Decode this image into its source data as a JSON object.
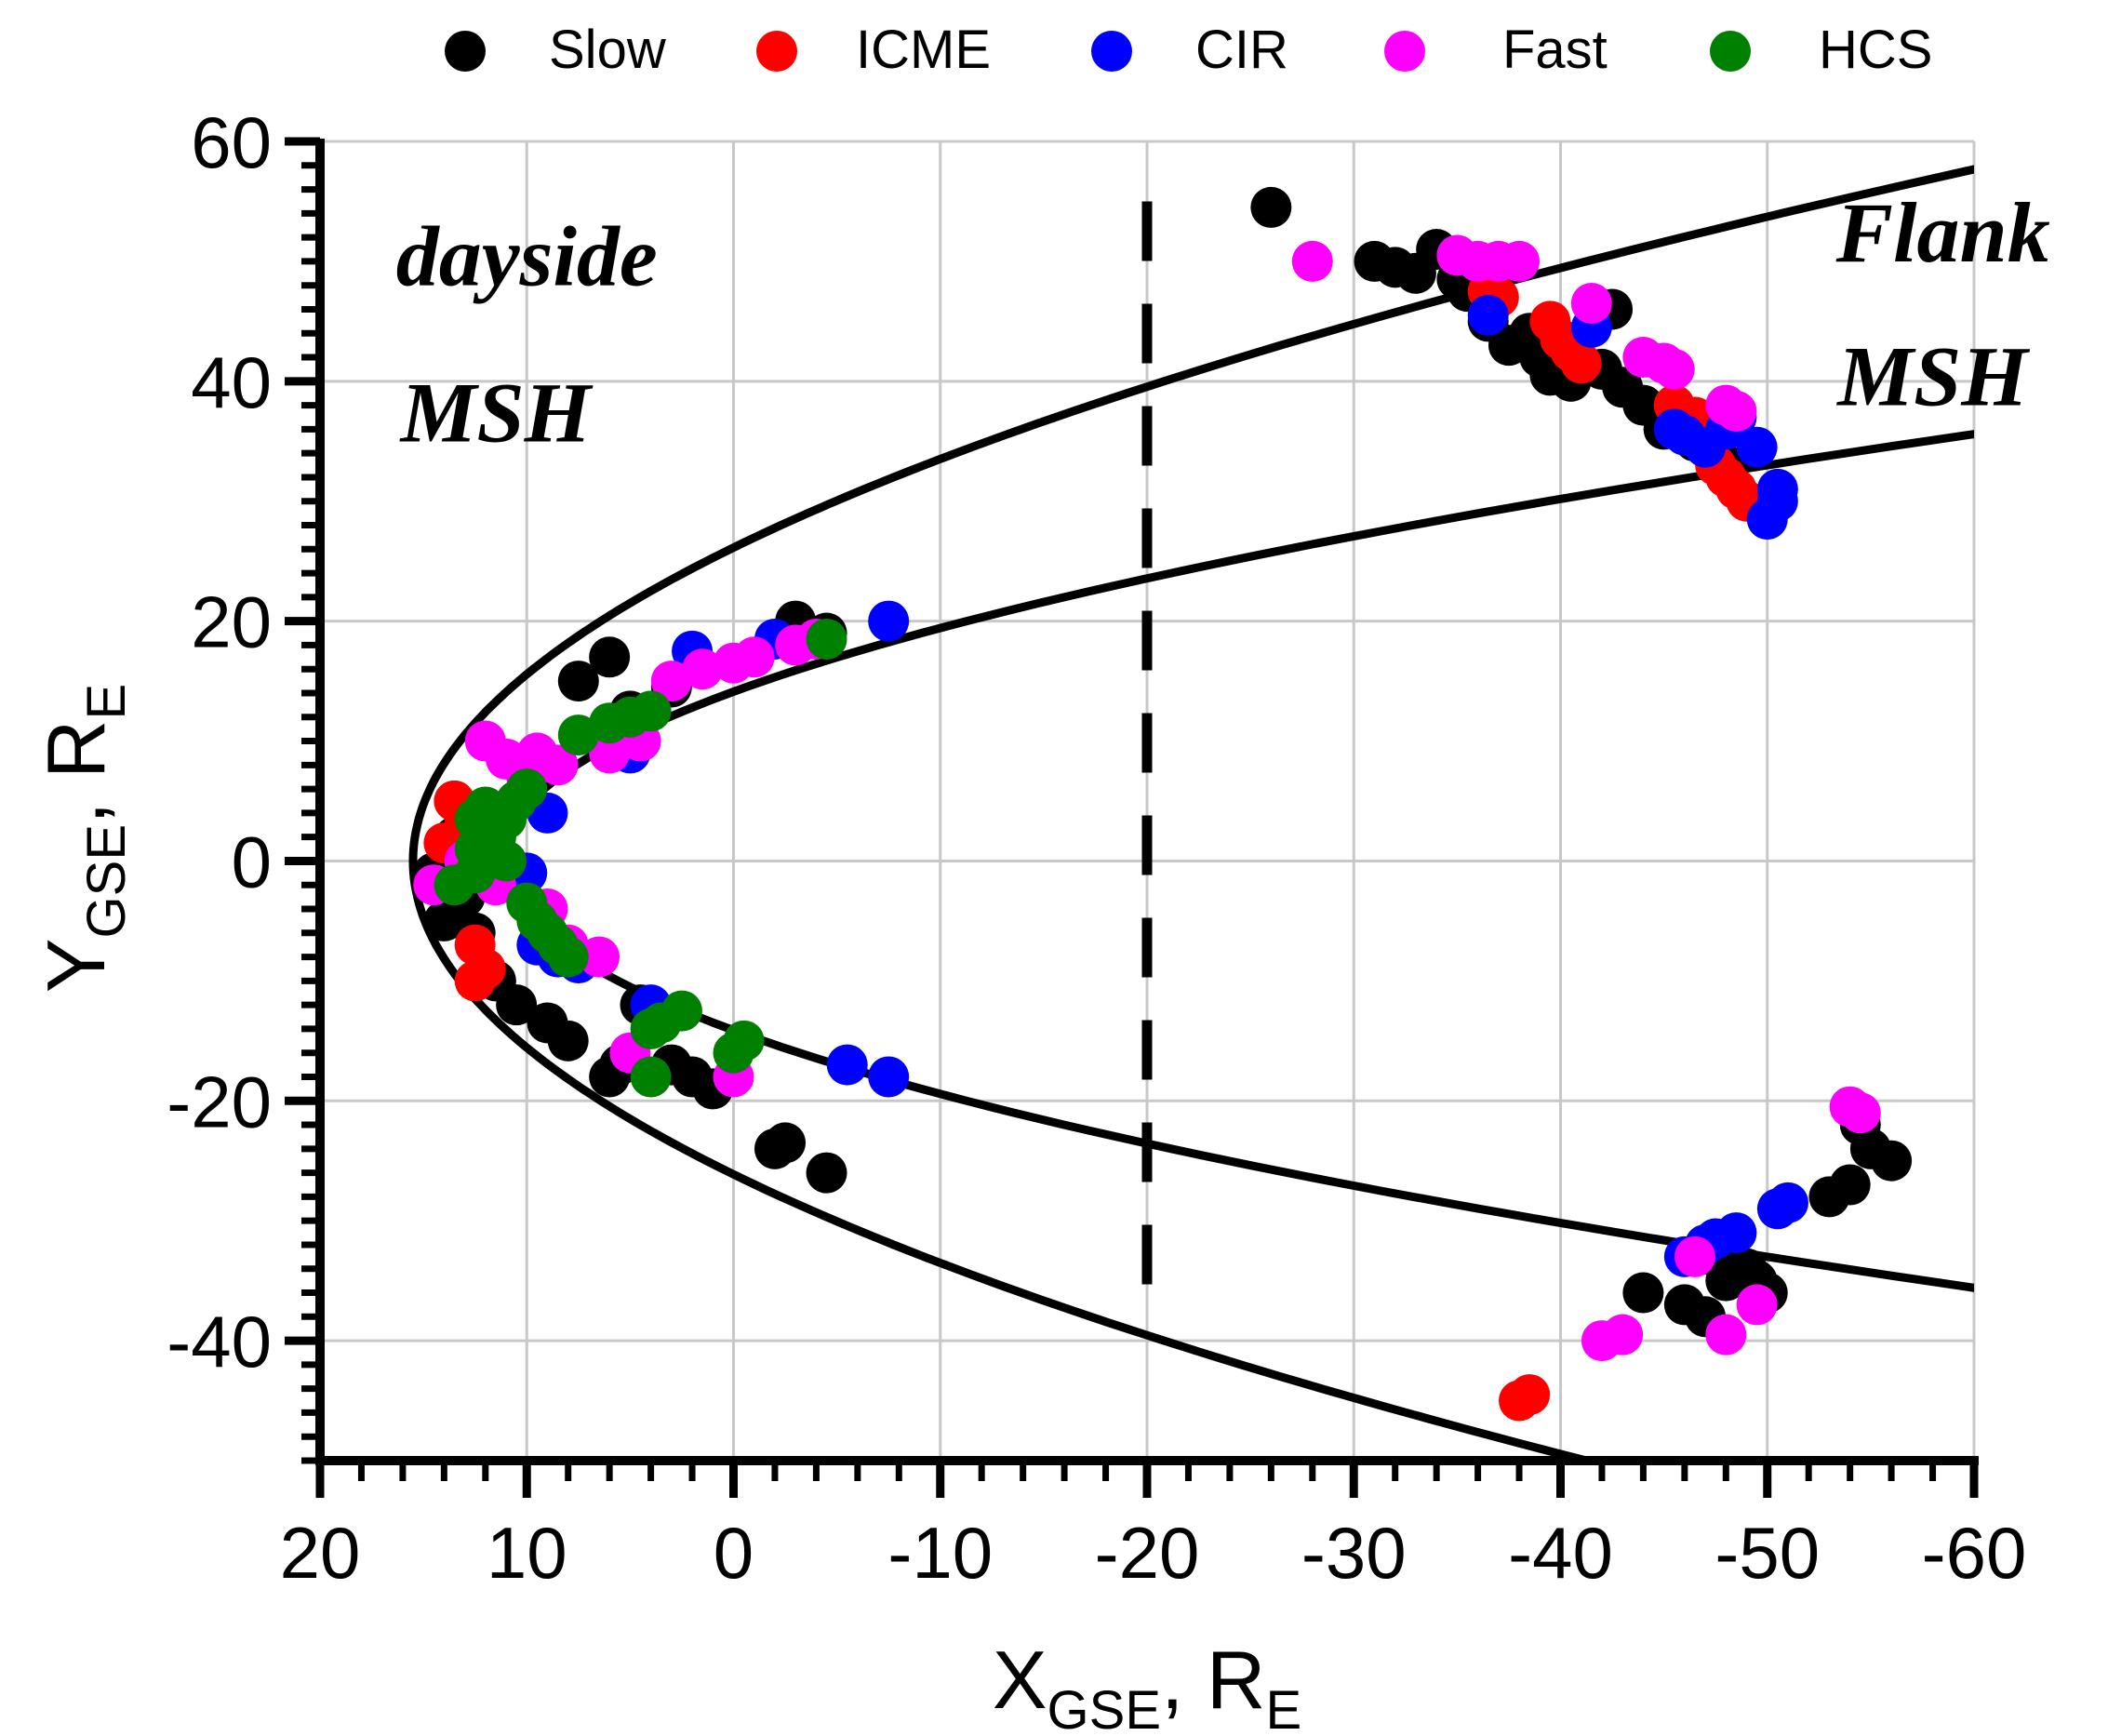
{
  "chart_data": {
    "type": "scatter",
    "title": "",
    "xlabel": {
      "main": "X",
      "sub": "GSE",
      "sep": ", ",
      "unit": "R",
      "unit_sub": "E"
    },
    "ylabel": {
      "main": "Y",
      "sub": "GSE",
      "sep": ", ",
      "unit": "R",
      "unit_sub": "E"
    },
    "xlim": [
      20,
      -60
    ],
    "ylim": [
      -50,
      60
    ],
    "x_ticks": [
      20,
      10,
      0,
      -10,
      -20,
      -30,
      -40,
      -50,
      -60
    ],
    "x_tick_labels": [
      "20",
      "10",
      "0",
      "-10",
      "-20",
      "-30",
      "-40",
      "-50",
      "-60"
    ],
    "y_ticks": [
      -40,
      -20,
      0,
      20,
      40,
      60
    ],
    "y_tick_labels": [
      "-40",
      "-20",
      "0",
      "20",
      "40",
      "60"
    ],
    "grid": true,
    "legend_position": "top",
    "annotations": [
      {
        "text": "dayside",
        "x": 10,
        "y": 48,
        "anchor": "middle"
      },
      {
        "text": "MSH",
        "x": 11.5,
        "y": 35,
        "anchor": "middle"
      },
      {
        "text": "Flank",
        "x": -58.5,
        "y": 50,
        "anchor": "middle"
      },
      {
        "text": "MSH",
        "x": -58,
        "y": 38,
        "anchor": "middle"
      }
    ],
    "reference_lines": [
      {
        "name": "divider",
        "x": -20,
        "y_range": [
          -37,
          55
        ],
        "style": "dashed"
      }
    ],
    "boundaries": [
      {
        "name": "bow-shock",
        "x0": 15.5,
        "a": 0.0227
      },
      {
        "name": "magnetopause",
        "x0": 11.2,
        "a": 0.0562
      }
    ],
    "series": [
      {
        "name": "Slow",
        "color": "#000000",
        "points": [
          [
            -26,
            54.5
          ],
          [
            -31,
            50
          ],
          [
            -32,
            49.5
          ],
          [
            -33,
            49
          ],
          [
            -34,
            51
          ],
          [
            -35,
            48.5
          ],
          [
            -35.5,
            47.5
          ],
          [
            -36.5,
            45
          ],
          [
            -37.5,
            43
          ],
          [
            -38.5,
            44
          ],
          [
            -39,
            42
          ],
          [
            -39.5,
            40.5
          ],
          [
            -40.5,
            40
          ],
          [
            -41,
            41.5
          ],
          [
            -42,
            41
          ],
          [
            -42.5,
            46
          ],
          [
            -43,
            39.5
          ],
          [
            -44,
            38
          ],
          [
            -45,
            36
          ],
          [
            -46.5,
            35
          ],
          [
            -48,
            33
          ],
          [
            14.5,
            -1
          ],
          [
            14,
            -5
          ],
          [
            13.5,
            2
          ],
          [
            13.5,
            5
          ],
          [
            13,
            -3
          ],
          [
            12.5,
            -6
          ],
          [
            11.5,
            -10
          ],
          [
            10.5,
            -12
          ],
          [
            9,
            -13.5
          ],
          [
            8,
            -15
          ],
          [
            6,
            -18
          ],
          [
            5.5,
            -17
          ],
          [
            4.5,
            -12
          ],
          [
            3,
            -17
          ],
          [
            2,
            -18
          ],
          [
            1,
            -19
          ],
          [
            -2,
            -24
          ],
          [
            -2.5,
            -23.5
          ],
          [
            -4.5,
            -26
          ],
          [
            7.5,
            15
          ],
          [
            6,
            17
          ],
          [
            5,
            12.5
          ],
          [
            3,
            14.5
          ],
          [
            -3,
            20
          ],
          [
            -4.5,
            19
          ],
          [
            -53,
            -28
          ],
          [
            -54,
            -27
          ],
          [
            -55,
            -24
          ],
          [
            -56,
            -25
          ],
          [
            -54.5,
            -22
          ],
          [
            -47.5,
            -33
          ],
          [
            -48,
            -35
          ],
          [
            -49,
            -34
          ],
          [
            -49.5,
            -35
          ],
          [
            -47,
            -38
          ],
          [
            -46,
            -37
          ],
          [
            -44,
            -36
          ],
          [
            -50,
            -36
          ]
        ]
      },
      {
        "name": "ICME",
        "color": "#ff0000",
        "points": [
          [
            -36.5,
            47.5
          ],
          [
            -37,
            47
          ],
          [
            -39.5,
            45
          ],
          [
            -40,
            43.5
          ],
          [
            -40.5,
            42.5
          ],
          [
            -41,
            41.5
          ],
          [
            -45.5,
            38
          ],
          [
            -46.5,
            37
          ],
          [
            -47.5,
            33
          ],
          [
            -48,
            32
          ],
          [
            -48.5,
            31
          ],
          [
            -49,
            30
          ],
          [
            13.5,
            5
          ],
          [
            14,
            1.5
          ],
          [
            13,
            3
          ],
          [
            12.5,
            -7
          ],
          [
            12,
            -9
          ],
          [
            12.5,
            -10
          ],
          [
            -38,
            -45
          ],
          [
            -38.5,
            -44.5
          ]
        ]
      },
      {
        "name": "CIR",
        "color": "#0000ff",
        "points": [
          [
            -36.5,
            45.5
          ],
          [
            -41.5,
            44.5
          ],
          [
            -45.5,
            36
          ],
          [
            -46,
            35.5
          ],
          [
            -47,
            34.5
          ],
          [
            -48,
            36
          ],
          [
            -48.5,
            37
          ],
          [
            -49.5,
            34.5
          ],
          [
            -50,
            28.5
          ],
          [
            -50.5,
            31
          ],
          [
            -50.5,
            30
          ],
          [
            2,
            17.5
          ],
          [
            -2,
            18.5
          ],
          [
            -7.5,
            20
          ],
          [
            5,
            9
          ],
          [
            4.5,
            10
          ],
          [
            9,
            4
          ],
          [
            10,
            -1
          ],
          [
            9.5,
            -7
          ],
          [
            8.5,
            -8
          ],
          [
            7.5,
            -8.5
          ],
          [
            4,
            -12
          ],
          [
            -5.5,
            -17
          ],
          [
            -7.5,
            -18
          ],
          [
            -46,
            -33
          ],
          [
            -47,
            -32
          ],
          [
            -47.5,
            -31.5
          ],
          [
            -48.5,
            -31
          ],
          [
            -51,
            -28.5
          ],
          [
            -50.5,
            -29
          ]
        ]
      },
      {
        "name": "Fast",
        "color": "#ff00ff",
        "points": [
          [
            -28,
            50
          ],
          [
            -35,
            50.5
          ],
          [
            -36,
            50
          ],
          [
            -37,
            50
          ],
          [
            -38,
            50
          ],
          [
            -41.5,
            46.5
          ],
          [
            -44,
            42
          ],
          [
            -45,
            41.5
          ],
          [
            -45.5,
            41
          ],
          [
            -48,
            38
          ],
          [
            -48.5,
            37.5
          ],
          [
            12,
            10
          ],
          [
            11,
            8.5
          ],
          [
            10,
            7
          ],
          [
            9.5,
            9
          ],
          [
            8.5,
            8
          ],
          [
            6,
            9
          ],
          [
            4.5,
            10
          ],
          [
            3,
            15
          ],
          [
            1.5,
            16
          ],
          [
            0,
            16.5
          ],
          [
            -1,
            17
          ],
          [
            -3,
            18
          ],
          [
            -4,
            18.5
          ],
          [
            14.5,
            -2
          ],
          [
            13,
            0
          ],
          [
            11.5,
            -2
          ],
          [
            9,
            -4
          ],
          [
            8,
            -7
          ],
          [
            6.5,
            -8
          ],
          [
            5,
            -16
          ],
          [
            0,
            -18
          ],
          [
            -54,
            -20.5
          ],
          [
            -54.5,
            -21
          ],
          [
            -46.5,
            -33
          ],
          [
            -42,
            -40
          ],
          [
            -43,
            -39.5
          ],
          [
            -48,
            -39.5
          ],
          [
            -49.5,
            -37
          ]
        ]
      },
      {
        "name": "HCS",
        "color": "#008000",
        "points": [
          [
            -4.5,
            18.5
          ],
          [
            7.5,
            10.5
          ],
          [
            6,
            11.5
          ],
          [
            5,
            12
          ],
          [
            4,
            12.5
          ],
          [
            12.5,
            3.5
          ],
          [
            12,
            4.5
          ],
          [
            11.5,
            2
          ],
          [
            11,
            3.5
          ],
          [
            10.5,
            5
          ],
          [
            10,
            6
          ],
          [
            12.5,
            1
          ],
          [
            11,
            0
          ],
          [
            13.5,
            -2
          ],
          [
            12.5,
            -1
          ],
          [
            10,
            -3.5
          ],
          [
            9.5,
            -5
          ],
          [
            9,
            -6
          ],
          [
            8.5,
            -7
          ],
          [
            8,
            -8
          ],
          [
            4,
            -14
          ],
          [
            3.5,
            -13.5
          ],
          [
            2.5,
            -12.5
          ],
          [
            0,
            -16
          ],
          [
            -0.5,
            -15
          ],
          [
            4,
            -18
          ]
        ]
      }
    ]
  }
}
